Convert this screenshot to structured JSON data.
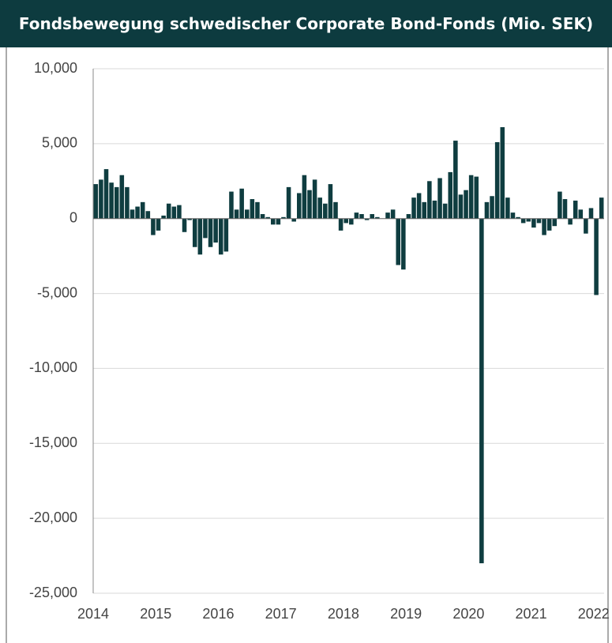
{
  "chart_data": {
    "type": "bar",
    "title": "Fondsbewegung schwedischer Corporate Bond-Fonds (Mio. SEK)",
    "categories": [
      "2014",
      null,
      null,
      null,
      null,
      null,
      null,
      null,
      null,
      null,
      null,
      null,
      "2015",
      null,
      null,
      null,
      null,
      null,
      null,
      null,
      null,
      null,
      null,
      null,
      "2016",
      null,
      null,
      null,
      null,
      null,
      null,
      null,
      null,
      null,
      null,
      null,
      "2017",
      null,
      null,
      null,
      null,
      null,
      null,
      null,
      null,
      null,
      null,
      null,
      "2018",
      null,
      null,
      null,
      null,
      null,
      null,
      null,
      null,
      null,
      null,
      null,
      "2019",
      null,
      null,
      null,
      null,
      null,
      null,
      null,
      null,
      null,
      null,
      null,
      "2020",
      null,
      null,
      null,
      null,
      null,
      null,
      null,
      null,
      null,
      null,
      null,
      "2021",
      null,
      null,
      null,
      null,
      null,
      null,
      null,
      null,
      null,
      null,
      null,
      "2022",
      null
    ],
    "values": [
      2300,
      2600,
      3300,
      2400,
      2100,
      2900,
      2100,
      600,
      800,
      1100,
      500,
      -1100,
      -800,
      200,
      1000,
      800,
      900,
      -900,
      -100,
      -1900,
      -2400,
      -1300,
      -1900,
      -1600,
      -2400,
      -2200,
      1800,
      600,
      2000,
      600,
      1300,
      1100,
      300,
      100,
      -400,
      -400,
      100,
      2100,
      -200,
      1700,
      2900,
      1900,
      2600,
      1400,
      1000,
      2300,
      1100,
      -800,
      -300,
      -400,
      400,
      300,
      -100,
      300,
      100,
      0,
      400,
      600,
      -3100,
      -3400,
      300,
      1400,
      1700,
      1100,
      2500,
      1200,
      2700,
      1000,
      3100,
      5200,
      1600,
      1900,
      2900,
      2800,
      -23000,
      1100,
      1500,
      5100,
      6100,
      1400,
      400,
      100,
      -300,
      -200,
      -600,
      -300,
      -1100,
      -800,
      -500,
      1800,
      1300,
      -400,
      1200,
      600,
      -1000,
      700,
      -5100,
      1400
    ],
    "color": "#0f3d40",
    "ylim": [
      -25000,
      10000
    ],
    "yticks": [
      {
        "value": -25000,
        "label": "-25,000"
      },
      {
        "value": -20000,
        "label": "-20,000"
      },
      {
        "value": -15000,
        "label": "-15,000"
      },
      {
        "value": -10000,
        "label": "-10,000"
      },
      {
        "value": -5000,
        "label": "-5,000"
      },
      0,
      {
        "value": 5000,
        "label": "5,000"
      },
      {
        "value": 10000,
        "label": "10,000"
      }
    ],
    "grid": true
  }
}
